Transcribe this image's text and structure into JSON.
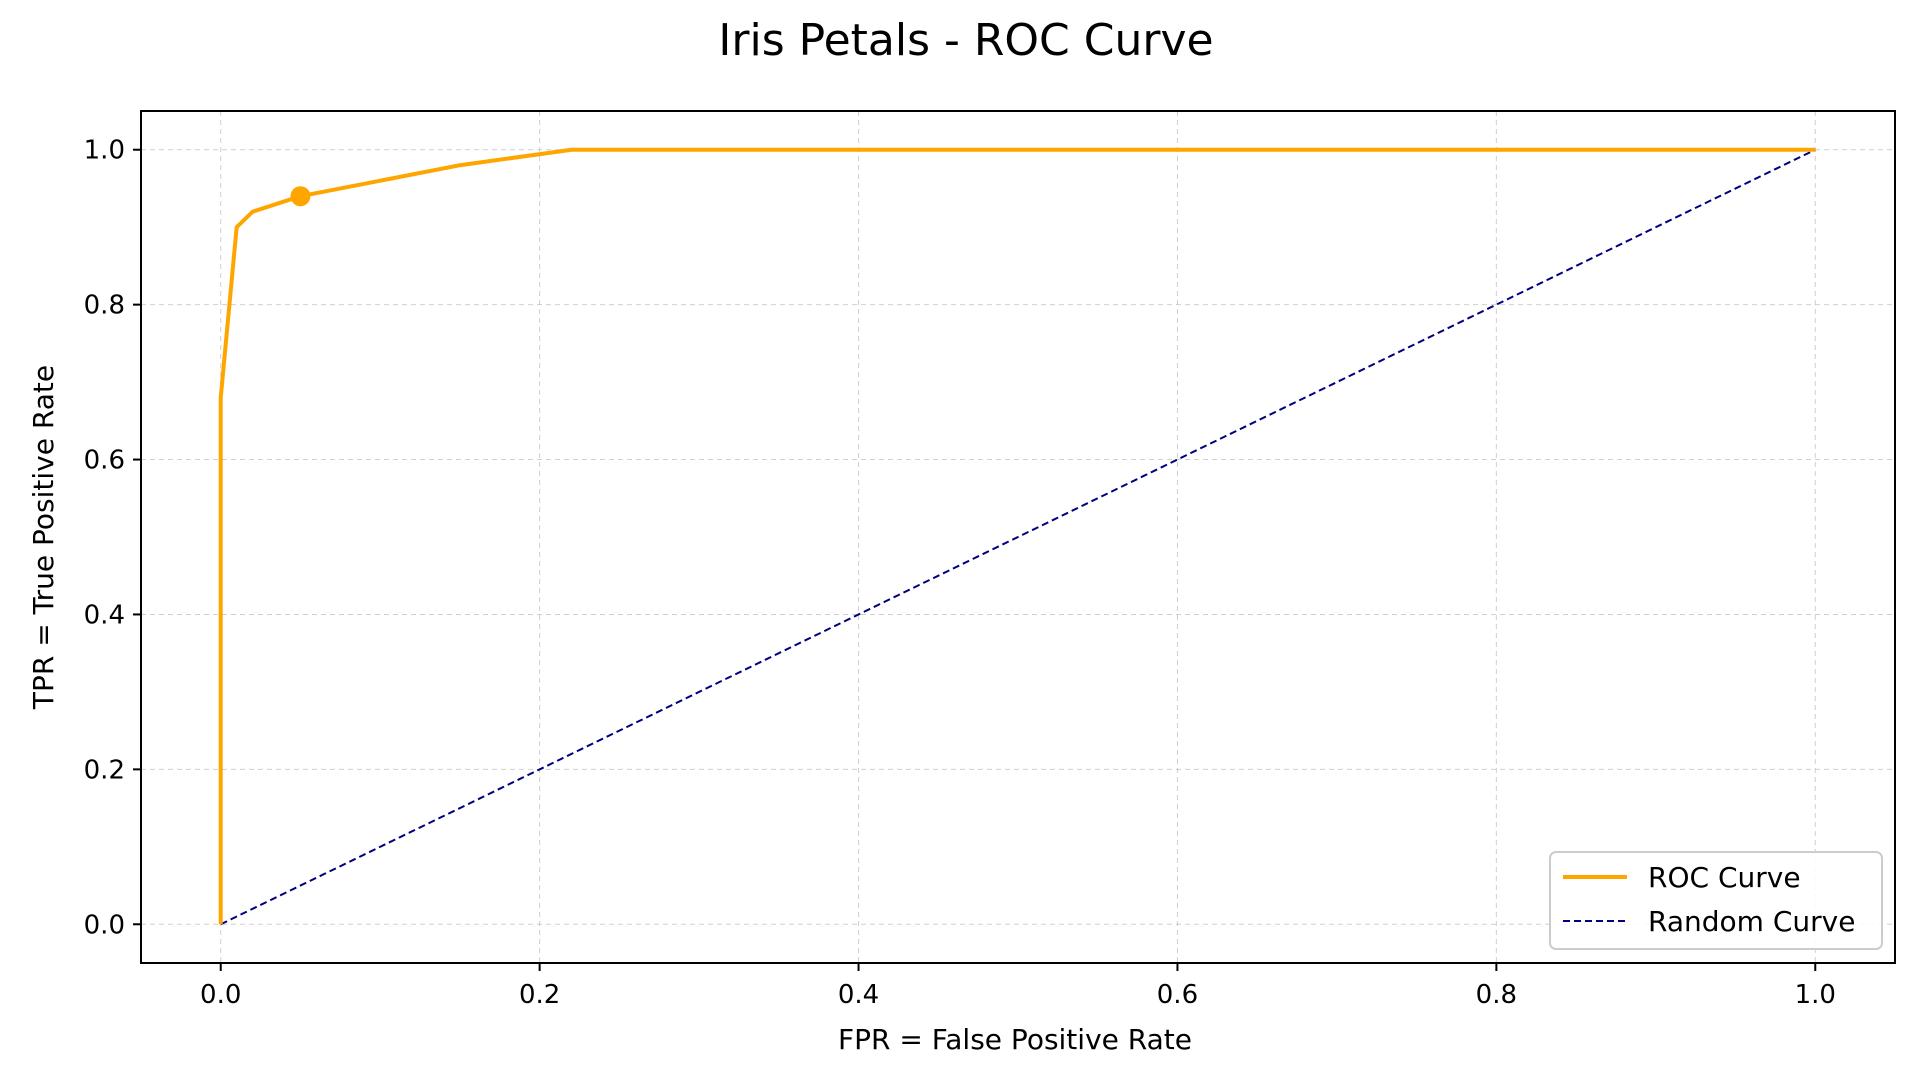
{
  "chart_data": {
    "type": "line",
    "title": "Iris Petals - ROC Curve",
    "xlabel": "FPR = False Positive Rate",
    "ylabel": "TPR = True Positive Rate",
    "xlim": [
      -0.05,
      1.05
    ],
    "ylim": [
      -0.05,
      1.05
    ],
    "x_ticks": [
      0.0,
      0.2,
      0.4,
      0.6,
      0.8,
      1.0
    ],
    "y_ticks": [
      0.0,
      0.2,
      0.4,
      0.6,
      0.8,
      1.0
    ],
    "x_tick_labels": [
      "0.0",
      "0.2",
      "0.4",
      "0.6",
      "0.8",
      "1.0"
    ],
    "y_tick_labels": [
      "0.0",
      "0.2",
      "0.4",
      "0.6",
      "0.8",
      "1.0"
    ],
    "grid": true,
    "legend_position": "lower-right",
    "series": [
      {
        "name": "ROC Curve",
        "color": "#FFA500",
        "style": "solid",
        "x": [
          0.0,
          0.0,
          0.01,
          0.02,
          0.05,
          0.15,
          0.22,
          1.0
        ],
        "y": [
          0.0,
          0.68,
          0.9,
          0.92,
          0.94,
          0.98,
          1.0,
          1.0
        ]
      },
      {
        "name": "Random Curve",
        "color": "#000080",
        "style": "dashed",
        "x": [
          0.0,
          1.0
        ],
        "y": [
          0.0,
          1.0
        ]
      }
    ],
    "marker": {
      "x": 0.05,
      "y": 0.94,
      "color": "#FFA500"
    }
  }
}
